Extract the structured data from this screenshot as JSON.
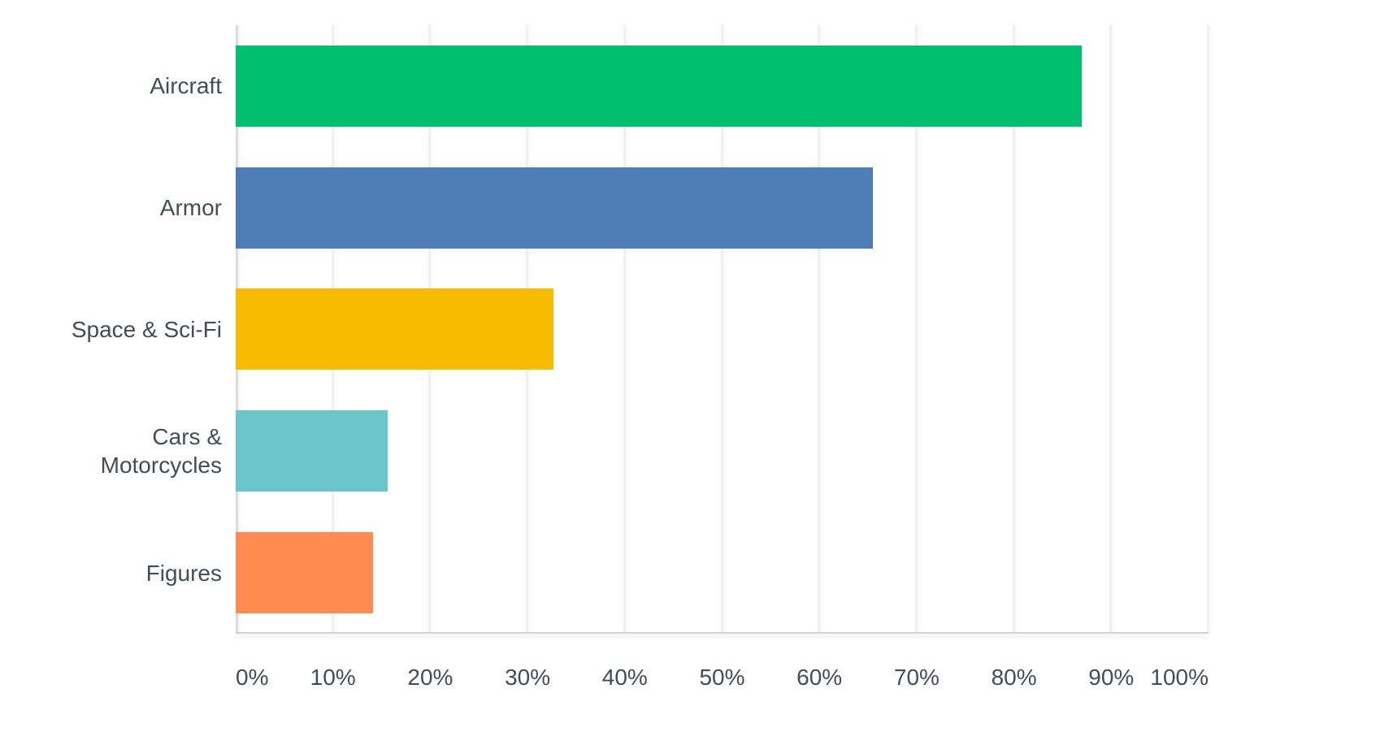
{
  "chart_data": {
    "type": "bar",
    "orientation": "horizontal",
    "categories": [
      "Aircraft",
      "Armor",
      "Space & Sci-Fi",
      "Cars & Motorcycles",
      "Figures"
    ],
    "values": [
      87,
      65.5,
      32.7,
      15.6,
      14.1
    ],
    "value_unit": "%",
    "bar_colors": [
      "#00BF6F",
      "#507CB6",
      "#F7BC00",
      "#6BC6CB",
      "#FF8A52"
    ],
    "x_ticks": [
      "0%",
      "10%",
      "20%",
      "30%",
      "40%",
      "50%",
      "60%",
      "70%",
      "80%",
      "90%",
      "100%"
    ],
    "x_tick_values": [
      0,
      10,
      20,
      30,
      40,
      50,
      60,
      70,
      80,
      90,
      100
    ],
    "xlim": [
      0,
      100
    ],
    "grid": "vertical",
    "legend": "none"
  }
}
